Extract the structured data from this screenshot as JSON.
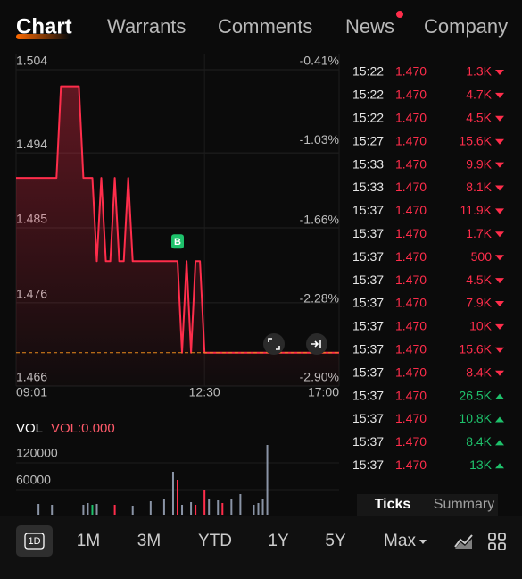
{
  "tabs": [
    "Chart",
    "Warrants",
    "Comments",
    "News",
    "Company"
  ],
  "chart_data": [
    {
      "type": "line",
      "color": "#ff2d4b",
      "marker": "B",
      "categories": [
        "09:01",
        null,
        null,
        null,
        null,
        null,
        null,
        null,
        null,
        null,
        null,
        null,
        null,
        null,
        null,
        null,
        null,
        null,
        null,
        null,
        null,
        null,
        null,
        null,
        null,
        null,
        null,
        null,
        null,
        null,
        null,
        null,
        null,
        null,
        null,
        null,
        null,
        null,
        null,
        null,
        null,
        null,
        "12:30",
        null,
        null,
        null,
        null,
        null,
        null,
        null,
        null,
        null,
        null,
        null,
        null,
        null,
        null,
        null,
        null,
        null,
        null,
        null,
        null,
        null,
        null,
        null,
        null,
        null,
        null,
        null,
        null,
        null,
        "17:00"
      ],
      "values": [
        1.491,
        1.491,
        1.491,
        1.491,
        1.491,
        1.491,
        1.491,
        1.491,
        1.491,
        1.491,
        1.502,
        1.502,
        1.502,
        1.502,
        1.502,
        1.491,
        1.491,
        1.491,
        1.481,
        1.491,
        1.481,
        1.481,
        1.491,
        1.481,
        1.481,
        1.491,
        1.481,
        1.481,
        1.481,
        1.481,
        1.481,
        1.481,
        1.481,
        1.481,
        1.481,
        1.481,
        1.481,
        1.47,
        1.481,
        1.47,
        1.481,
        1.481,
        1.47,
        1.47,
        1.47,
        1.47,
        1.47,
        1.47,
        1.47,
        1.47,
        1.47,
        1.47,
        1.47,
        1.47,
        1.47,
        1.47,
        1.47,
        1.47,
        1.47,
        1.47,
        1.47,
        1.47,
        1.47,
        1.47,
        1.47,
        1.47,
        1.47,
        1.47,
        1.47,
        1.47,
        1.47,
        1.47,
        1.47
      ],
      "ylim": [
        1.466,
        1.504
      ],
      "yticks": [
        1.504,
        1.494,
        1.485,
        1.476,
        1.466
      ],
      "y2lim": [
        -2.9,
        -0.41
      ],
      "y2ticks": [
        {
          "value": -0.41,
          "label": "-0.41%"
        },
        {
          "value": -1.03,
          "label": "-1.03%"
        },
        {
          "value": -1.66,
          "label": "-1.66%"
        },
        {
          "value": -2.28,
          "label": "-2.28%"
        },
        {
          "value": -2.9,
          "label": "-2.90%"
        }
      ],
      "grid": true
    },
    {
      "type": "bar",
      "title": "VOL",
      "subtitle": "VOL:0.000",
      "values": [
        null,
        null,
        null,
        null,
        null,
        8000,
        null,
        null,
        6000,
        null,
        null,
        null,
        null,
        null,
        null,
        6000,
        10000,
        6000,
        8000,
        null,
        null,
        null,
        6000,
        null,
        null,
        null,
        4000,
        null,
        null,
        null,
        14000,
        null,
        null,
        20000,
        null,
        80000,
        62000,
        6000,
        null,
        12000,
        6000,
        null,
        40000,
        20000,
        null,
        16000,
        10000,
        null,
        18000,
        null,
        30000,
        null,
        null,
        6000,
        10000,
        20000,
        140000,
        null,
        null,
        null,
        null,
        null,
        null,
        null,
        null,
        null,
        null,
        null,
        null,
        null,
        null,
        null,
        null
      ],
      "colors": [
        null,
        null,
        null,
        null,
        null,
        "#8a94a6",
        null,
        null,
        "#8a94a6",
        null,
        null,
        null,
        null,
        null,
        null,
        "#8a94a6",
        "#8a94a6",
        "#1ec16b",
        "#8a94a6",
        null,
        null,
        null,
        "#ff2d4b",
        null,
        null,
        null,
        "#8a94a6",
        null,
        null,
        null,
        "#8a94a6",
        null,
        null,
        "#8a94a6",
        null,
        "#8a94a6",
        "#ff2d4b",
        "#8a94a6",
        null,
        "#8a94a6",
        "#ff2d4b",
        null,
        "#ff2d4b",
        "#8a94a6",
        null,
        "#8a94a6",
        "#ff2d4b",
        null,
        "#8a94a6",
        null,
        "#8a94a6",
        null,
        null,
        "#8a94a6",
        "#8a94a6",
        "#8a94a6",
        "#8a94a6",
        null,
        null,
        null,
        null,
        null,
        null,
        null,
        null,
        null,
        null,
        null,
        null,
        null,
        null,
        null,
        null
      ],
      "ylim": [
        0,
        140000
      ],
      "yticks": [
        120000,
        60000
      ]
    }
  ],
  "trades": [
    {
      "time": "15:22",
      "price": "1.470",
      "volume": "1.3K",
      "direction": "down"
    },
    {
      "time": "15:22",
      "price": "1.470",
      "volume": "4.7K",
      "direction": "down"
    },
    {
      "time": "15:22",
      "price": "1.470",
      "volume": "4.5K",
      "direction": "down"
    },
    {
      "time": "15:27",
      "price": "1.470",
      "volume": "15.6K",
      "direction": "down"
    },
    {
      "time": "15:33",
      "price": "1.470",
      "volume": "9.9K",
      "direction": "down"
    },
    {
      "time": "15:33",
      "price": "1.470",
      "volume": "8.1K",
      "direction": "down"
    },
    {
      "time": "15:37",
      "price": "1.470",
      "volume": "11.9K",
      "direction": "down"
    },
    {
      "time": "15:37",
      "price": "1.470",
      "volume": "1.7K",
      "direction": "down"
    },
    {
      "time": "15:37",
      "price": "1.470",
      "volume": "500",
      "direction": "down"
    },
    {
      "time": "15:37",
      "price": "1.470",
      "volume": "4.5K",
      "direction": "down"
    },
    {
      "time": "15:37",
      "price": "1.470",
      "volume": "7.9K",
      "direction": "down"
    },
    {
      "time": "15:37",
      "price": "1.470",
      "volume": "10K",
      "direction": "down"
    },
    {
      "time": "15:37",
      "price": "1.470",
      "volume": "15.6K",
      "direction": "down"
    },
    {
      "time": "15:37",
      "price": "1.470",
      "volume": "8.4K",
      "direction": "down"
    },
    {
      "time": "15:37",
      "price": "1.470",
      "volume": "26.5K",
      "direction": "up"
    },
    {
      "time": "15:37",
      "price": "1.470",
      "volume": "10.8K",
      "direction": "up"
    },
    {
      "time": "15:37",
      "price": "1.470",
      "volume": "8.4K",
      "direction": "up"
    },
    {
      "time": "15:37",
      "price": "1.470",
      "volume": "13K",
      "direction": "up"
    }
  ],
  "trade_tabs": [
    "Ticks",
    "Summary"
  ],
  "periods": [
    "1D",
    "1M",
    "3M",
    "YTD",
    "1Y",
    "5Y",
    "Max"
  ]
}
